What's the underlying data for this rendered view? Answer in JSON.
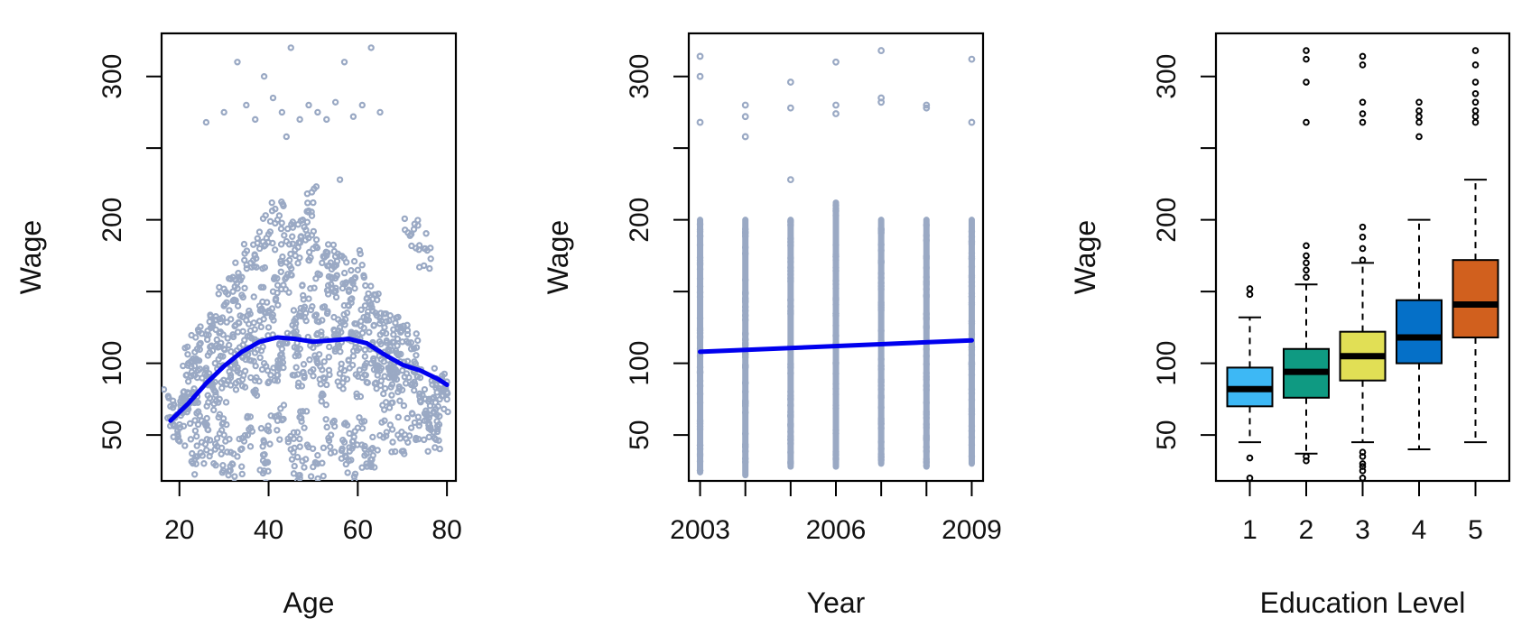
{
  "colors": {
    "points": "#9aa9c4",
    "fit_line": "#0000ee",
    "frame": "#000000"
  },
  "chart_data": [
    {
      "type": "scatter",
      "xlabel": "Age",
      "ylabel": "Wage",
      "xlim": [
        16,
        82
      ],
      "ylim": [
        18,
        330
      ],
      "x_ticks": [
        20,
        40,
        60,
        80
      ],
      "y_ticks": [
        50,
        100,
        150,
        200,
        250,
        300
      ],
      "y_tick_labels": [
        "50",
        "100",
        "",
        "200",
        "",
        "300"
      ],
      "points": [
        [
          18,
          70
        ],
        [
          19,
          62
        ],
        [
          20,
          55
        ],
        [
          21,
          75
        ],
        [
          22,
          68
        ],
        [
          23,
          80
        ],
        [
          24,
          90
        ],
        [
          25,
          60
        ],
        [
          26,
          95
        ],
        [
          27,
          85
        ],
        [
          28,
          100
        ],
        [
          29,
          75
        ],
        [
          30,
          110
        ],
        [
          31,
          88
        ],
        [
          32,
          120
        ],
        [
          33,
          95
        ],
        [
          34,
          105
        ],
        [
          35,
          130
        ],
        [
          36,
          90
        ],
        [
          37,
          115
        ],
        [
          38,
          140
        ],
        [
          39,
          100
        ],
        [
          40,
          125
        ],
        [
          41,
          150
        ],
        [
          42,
          95
        ],
        [
          43,
          110
        ],
        [
          44,
          160
        ],
        [
          45,
          120
        ],
        [
          46,
          105
        ],
        [
          47,
          135
        ],
        [
          48,
          90
        ],
        [
          49,
          145
        ],
        [
          50,
          115
        ],
        [
          51,
          100
        ],
        [
          52,
          130
        ],
        [
          53,
          85
        ],
        [
          54,
          155
        ],
        [
          55,
          110
        ],
        [
          56,
          125
        ],
        [
          57,
          95
        ],
        [
          58,
          140
        ],
        [
          59,
          105
        ],
        [
          60,
          120
        ],
        [
          61,
          90
        ],
        [
          62,
          130
        ],
        [
          63,
          100
        ],
        [
          64,
          110
        ],
        [
          65,
          95
        ],
        [
          66,
          105
        ],
        [
          67,
          90
        ],
        [
          68,
          100
        ],
        [
          69,
          80
        ],
        [
          70,
          95
        ],
        [
          72,
          85
        ],
        [
          74,
          90
        ],
        [
          76,
          75
        ],
        [
          78,
          88
        ],
        [
          80,
          80
        ],
        [
          22,
          100
        ],
        [
          24,
          110
        ],
        [
          26,
          120
        ],
        [
          28,
          130
        ],
        [
          30,
          140
        ],
        [
          32,
          150
        ],
        [
          34,
          160
        ],
        [
          36,
          170
        ],
        [
          38,
          180
        ],
        [
          40,
          190
        ],
        [
          42,
          200
        ],
        [
          44,
          185
        ],
        [
          46,
          175
        ],
        [
          48,
          195
        ],
        [
          50,
          180
        ],
        [
          52,
          170
        ],
        [
          54,
          160
        ],
        [
          56,
          175
        ],
        [
          58,
          150
        ],
        [
          60,
          165
        ],
        [
          62,
          145
        ],
        [
          64,
          135
        ],
        [
          66,
          125
        ],
        [
          68,
          120
        ],
        [
          70,
          115
        ],
        [
          72,
          110
        ],
        [
          75,
          180
        ],
        [
          72,
          190
        ],
        [
          25,
          45
        ],
        [
          28,
          40
        ],
        [
          30,
          50
        ],
        [
          33,
          35
        ],
        [
          36,
          55
        ],
        [
          39,
          45
        ],
        [
          42,
          60
        ],
        [
          45,
          40
        ],
        [
          48,
          55
        ],
        [
          51,
          30
        ],
        [
          54,
          50
        ],
        [
          57,
          45
        ],
        [
          60,
          55
        ],
        [
          63,
          40
        ],
        [
          66,
          60
        ],
        [
          69,
          50
        ],
        [
          72,
          55
        ],
        [
          75,
          65
        ],
        [
          78,
          70
        ],
        [
          26,
          268
        ],
        [
          30,
          275
        ],
        [
          33,
          310
        ],
        [
          35,
          280
        ],
        [
          37,
          270
        ],
        [
          39,
          300
        ],
        [
          41,
          285
        ],
        [
          43,
          275
        ],
        [
          45,
          320
        ],
        [
          47,
          270
        ],
        [
          49,
          280
        ],
        [
          51,
          275
        ],
        [
          53,
          270
        ],
        [
          55,
          282
        ],
        [
          57,
          310
        ],
        [
          59,
          272
        ],
        [
          61,
          280
        ],
        [
          63,
          320
        ],
        [
          65,
          275
        ],
        [
          44,
          258
        ],
        [
          56,
          228
        ],
        [
          50,
          212
        ],
        [
          24,
          35
        ],
        [
          31,
          22
        ],
        [
          39,
          25
        ],
        [
          47,
          22
        ],
        [
          58,
          32
        ],
        [
          62,
          28
        ],
        [
          75,
          60
        ],
        [
          77,
          52
        ]
      ],
      "fit_x": [
        18,
        22,
        26,
        30,
        34,
        38,
        42,
        46,
        50,
        54,
        58,
        62,
        66,
        70,
        74,
        78,
        80
      ],
      "fit_y": [
        60,
        72,
        86,
        98,
        108,
        115,
        118,
        117,
        115,
        116,
        117,
        114,
        106,
        99,
        95,
        89,
        85
      ]
    },
    {
      "type": "scatter",
      "xlabel": "Year",
      "ylabel": "Wage",
      "xlim": [
        2002.75,
        2009.25
      ],
      "ylim": [
        18,
        330
      ],
      "x_ticks": [
        2003,
        2004,
        2005,
        2006,
        2007,
        2008,
        2009
      ],
      "x_tick_labels": [
        "2003",
        "",
        "",
        "2006",
        "",
        "",
        "2009"
      ],
      "y_ticks": [
        50,
        100,
        150,
        200,
        250,
        300
      ],
      "y_tick_labels": [
        "50",
        "100",
        "",
        "200",
        "",
        "300"
      ],
      "columns": [
        {
          "x": 2003,
          "low": 24,
          "high": 200,
          "outliers": [
            268,
            300,
            314
          ]
        },
        {
          "x": 2004,
          "low": 22,
          "high": 200,
          "outliers": [
            258,
            272,
            280
          ]
        },
        {
          "x": 2005,
          "low": 28,
          "high": 200,
          "outliers": [
            228,
            278,
            296
          ]
        },
        {
          "x": 2006,
          "low": 28,
          "high": 212,
          "outliers": [
            274,
            280,
            310
          ]
        },
        {
          "x": 2007,
          "low": 30,
          "high": 200,
          "outliers": [
            282,
            285,
            318
          ]
        },
        {
          "x": 2008,
          "low": 28,
          "high": 200,
          "outliers": [
            278,
            280
          ]
        },
        {
          "x": 2009,
          "low": 30,
          "high": 200,
          "outliers": [
            268,
            312
          ]
        }
      ],
      "fit_x": [
        2003,
        2009
      ],
      "fit_y": [
        108,
        116
      ]
    },
    {
      "type": "box",
      "xlabel": "Education Level",
      "ylabel": "Wage",
      "xlim": [
        0.4,
        5.6
      ],
      "ylim": [
        18,
        330
      ],
      "categories": [
        "1",
        "2",
        "3",
        "4",
        "5"
      ],
      "y_ticks": [
        50,
        100,
        150,
        200,
        250,
        300
      ],
      "y_tick_labels": [
        "50",
        "100",
        "",
        "200",
        "",
        "300"
      ],
      "boxes": [
        {
          "label": "1",
          "color": "#3db8f5",
          "min": 45,
          "q1": 70,
          "median": 82,
          "q3": 97,
          "max": 132,
          "outliers": [
            34,
            20,
            148,
            152
          ]
        },
        {
          "label": "2",
          "color": "#0f9a82",
          "min": 37,
          "q1": 76,
          "median": 94,
          "q3": 110,
          "max": 155,
          "outliers": [
            32,
            35,
            160,
            165,
            170,
            175,
            182,
            268,
            296,
            312,
            318
          ]
        },
        {
          "label": "3",
          "color": "#e1df55",
          "min": 45,
          "q1": 88,
          "median": 105,
          "q3": 122,
          "max": 170,
          "outliers": [
            20,
            25,
            28,
            30,
            35,
            38,
            172,
            180,
            188,
            195,
            268,
            274,
            282,
            308,
            314
          ]
        },
        {
          "label": "4",
          "color": "#0570c8",
          "min": 40,
          "q1": 100,
          "median": 118,
          "q3": 144,
          "max": 200,
          "outliers": [
            258,
            268,
            272,
            276,
            282
          ]
        },
        {
          "label": "5",
          "color": "#d1601e",
          "min": 45,
          "q1": 118,
          "median": 141,
          "q3": 172,
          "max": 228,
          "outliers": [
            268,
            272,
            276,
            282,
            288,
            296,
            308,
            318
          ]
        }
      ]
    }
  ]
}
